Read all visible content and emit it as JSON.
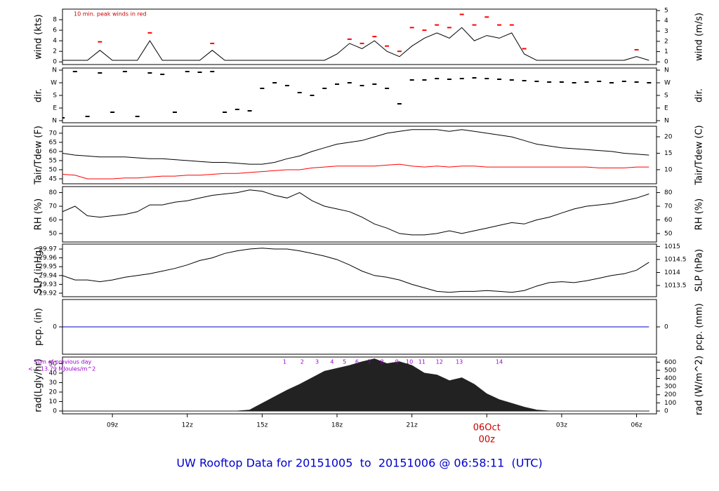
{
  "title": "UW Rooftop Data for 20151005  to  20151006 @ 06:58:11  (UTC)",
  "time_axis": {
    "xlim": [
      7,
      30.8
    ],
    "xticks": [
      {
        "value": 9,
        "label": "09z"
      },
      {
        "value": 12,
        "label": "12z"
      },
      {
        "value": 15,
        "label": "15z"
      },
      {
        "value": 18,
        "label": "18z"
      },
      {
        "value": 21,
        "label": "21z"
      },
      {
        "value": 24,
        "label": "00z"
      },
      {
        "value": 27,
        "label": "03z"
      },
      {
        "value": 30,
        "label": "06z"
      }
    ],
    "date_label": {
      "value": 24,
      "label": "06Oct"
    }
  },
  "chart_data": [
    {
      "type": "line",
      "ylabel": "wind (kts)",
      "y2label": "wind (m/s)",
      "annotation": "10 min. peak winds in red",
      "ylim": [
        -0.5,
        10
      ],
      "yticks": [
        0,
        2,
        4,
        6,
        8
      ],
      "y2lim": [
        -0.26,
        5.14
      ],
      "y2ticks": [
        0,
        1,
        2,
        3,
        4,
        5
      ],
      "x": [
        7,
        7.5,
        8,
        8.5,
        9,
        9.5,
        10,
        10.5,
        11,
        11.5,
        12,
        12.5,
        13,
        13.5,
        14,
        14.5,
        15,
        15.5,
        16,
        16.5,
        17,
        17.5,
        18,
        18.5,
        19,
        19.5,
        20,
        20.5,
        21,
        21.5,
        22,
        22.5,
        23,
        23.5,
        24,
        24.5,
        25,
        25.5,
        26,
        26.5,
        27,
        27.5,
        28,
        28.5,
        29,
        29.5,
        30,
        30.5
      ],
      "series": [
        {
          "style": "line",
          "color": "#000000",
          "values": [
            0.3,
            0.3,
            0.3,
            2.2,
            0.3,
            0.3,
            0.3,
            4,
            0.3,
            0.3,
            0.3,
            0.3,
            2.2,
            0.3,
            0.3,
            0.3,
            0.3,
            0.3,
            0.3,
            0.3,
            0.3,
            0.3,
            1.5,
            3.5,
            2.5,
            4,
            2,
            1,
            3,
            4.5,
            5.5,
            4.5,
            6.5,
            4,
            5,
            4.5,
            5.5,
            1.5,
            0.3,
            0.3,
            0.3,
            0.3,
            0.3,
            0.3,
            0.3,
            0.3,
            1,
            0.3
          ]
        },
        {
          "style": "dash",
          "color": "#ff0000",
          "values": [
            null,
            null,
            null,
            3.8,
            null,
            null,
            null,
            5.5,
            null,
            null,
            null,
            null,
            3.5,
            null,
            null,
            null,
            null,
            null,
            null,
            null,
            null,
            null,
            null,
            4.3,
            3.5,
            4.8,
            3,
            2,
            6.5,
            6,
            7,
            6.5,
            9,
            7,
            8.5,
            7,
            7,
            2.5,
            null,
            null,
            null,
            null,
            null,
            null,
            null,
            null,
            2.3,
            null
          ]
        }
      ]
    },
    {
      "type": "scatter",
      "ylabel": "dir.",
      "y2label": "dir.",
      "ylim": [
        -15,
        375
      ],
      "yticks": [
        {
          "value": 0,
          "label": "N"
        },
        {
          "value": 90,
          "label": "E"
        },
        {
          "value": 180,
          "label": "S"
        },
        {
          "value": 270,
          "label": "W"
        },
        {
          "value": 360,
          "label": "N"
        }
      ],
      "y2lim": [
        -15,
        375
      ],
      "y2ticks": [
        {
          "value": 0,
          "label": "N"
        },
        {
          "value": 90,
          "label": "E"
        },
        {
          "value": 180,
          "label": "S"
        },
        {
          "value": 270,
          "label": "W"
        },
        {
          "value": 360,
          "label": "N"
        }
      ],
      "x": [
        7,
        7.5,
        8,
        8.5,
        9,
        9.5,
        10,
        10.5,
        11,
        11.5,
        12,
        12.5,
        13,
        13.5,
        14,
        14.5,
        15,
        15.5,
        16,
        16.5,
        17,
        17.5,
        18,
        18.5,
        19,
        19.5,
        20,
        20.5,
        21,
        21.5,
        22,
        22.5,
        23,
        23.5,
        24,
        24.5,
        25,
        25.5,
        26,
        26.5,
        27,
        27.5,
        28,
        28.5,
        29,
        29.5,
        30,
        30.5
      ],
      "series": [
        {
          "style": "dash",
          "color": "#000000",
          "values": [
            20,
            350,
            30,
            340,
            60,
            350,
            30,
            340,
            330,
            60,
            350,
            345,
            350,
            60,
            80,
            70,
            230,
            270,
            250,
            200,
            180,
            230,
            260,
            270,
            250,
            260,
            230,
            120,
            290,
            290,
            300,
            295,
            300,
            305,
            300,
            295,
            290,
            285,
            280,
            275,
            275,
            270,
            275,
            280,
            270,
            280,
            275,
            270
          ]
        }
      ]
    },
    {
      "type": "line",
      "ylabel": "Tair/Tdew (F)",
      "y2label": "Tair/Tdew (C)",
      "ylim": [
        42.3,
        73.8
      ],
      "yticks": [
        45,
        50,
        55,
        60,
        65,
        70
      ],
      "y2lim": [
        5.72,
        23.2
      ],
      "y2ticks": [
        10,
        15,
        20
      ],
      "x": [
        7,
        7.5,
        8,
        8.5,
        9,
        9.5,
        10,
        10.5,
        11,
        11.5,
        12,
        12.5,
        13,
        13.5,
        14,
        14.5,
        15,
        15.5,
        16,
        16.5,
        17,
        17.5,
        18,
        18.5,
        19,
        19.5,
        20,
        20.5,
        21,
        21.5,
        22,
        22.5,
        23,
        23.5,
        24,
        24.5,
        25,
        25.5,
        26,
        26.5,
        27,
        27.5,
        28,
        28.5,
        29,
        29.5,
        30,
        30.5
      ],
      "series": [
        {
          "style": "line",
          "color": "#000000",
          "values": [
            59,
            58,
            57.5,
            57,
            57,
            57,
            56.5,
            56,
            56,
            55.5,
            55,
            54.5,
            54,
            54,
            53.5,
            53,
            53,
            54,
            56,
            57.5,
            60,
            62,
            64,
            65,
            66,
            68,
            70,
            71,
            72,
            72,
            72,
            71,
            72,
            71,
            70,
            69,
            68,
            66,
            64,
            63,
            62,
            61.5,
            61,
            60.5,
            60,
            59,
            58.5,
            58
          ]
        },
        {
          "style": "line",
          "color": "#ff0000",
          "values": [
            47.5,
            47,
            45,
            45,
            45,
            45.5,
            45.5,
            46,
            46.5,
            46.5,
            47,
            47,
            47.5,
            48,
            48,
            48.5,
            49,
            49.5,
            50,
            50,
            51,
            51.5,
            52,
            52,
            52,
            52,
            52.5,
            53,
            52,
            51.5,
            52,
            51.5,
            52,
            52,
            51.5,
            51.5,
            51.5,
            51.5,
            51.5,
            51.5,
            51.5,
            51.5,
            51.5,
            51,
            51,
            51,
            51.5,
            51.5
          ]
        }
      ]
    },
    {
      "type": "line",
      "ylabel": "RH (%)",
      "y2label": "RH (%)",
      "ylim": [
        43.8,
        84.4
      ],
      "yticks": [
        50,
        60,
        70,
        80
      ],
      "y2lim": [
        43.8,
        84.4
      ],
      "y2ticks": [
        50,
        60,
        70,
        80
      ],
      "x": [
        7,
        7.5,
        8,
        8.5,
        9,
        9.5,
        10,
        10.5,
        11,
        11.5,
        12,
        12.5,
        13,
        13.5,
        14,
        14.5,
        15,
        15.5,
        16,
        16.5,
        17,
        17.5,
        18,
        18.5,
        19,
        19.5,
        20,
        20.5,
        21,
        21.5,
        22,
        22.5,
        23,
        23.5,
        24,
        24.5,
        25,
        25.5,
        26,
        26.5,
        27,
        27.5,
        28,
        28.5,
        29,
        29.5,
        30,
        30.5
      ],
      "series": [
        {
          "style": "line",
          "color": "#000000",
          "values": [
            66,
            70,
            63,
            62,
            63,
            64,
            66,
            71,
            71,
            73,
            74,
            76,
            78,
            79,
            80,
            82,
            81,
            78,
            76,
            80,
            74,
            70,
            68,
            66,
            62,
            57,
            54,
            50,
            49,
            49,
            50,
            52,
            50,
            52,
            54,
            56,
            58,
            57,
            60,
            62,
            65,
            68,
            70,
            71,
            72,
            74,
            76,
            79
          ]
        }
      ]
    },
    {
      "type": "line",
      "ylabel": "SLP (inHg)",
      "y2label": "SLP (hPa)",
      "ylim": [
        29.916,
        29.9756
      ],
      "yticks": [
        29.92,
        29.93,
        29.94,
        29.95,
        29.96,
        29.97
      ],
      "y2lim": [
        1013.07,
        1015.09
      ],
      "y2ticks": [
        1013.5,
        1014,
        1014.5,
        1015
      ],
      "x": [
        7,
        7.5,
        8,
        8.5,
        9,
        9.5,
        10,
        10.5,
        11,
        11.5,
        12,
        12.5,
        13,
        13.5,
        14,
        14.5,
        15,
        15.5,
        16,
        16.5,
        17,
        17.5,
        18,
        18.5,
        19,
        19.5,
        20,
        20.5,
        21,
        21.5,
        22,
        22.5,
        23,
        23.5,
        24,
        24.5,
        25,
        25.5,
        26,
        26.5,
        27,
        27.5,
        28,
        28.5,
        29,
        29.5,
        30,
        30.5
      ],
      "series": [
        {
          "style": "line",
          "color": "#000000",
          "values": [
            29.94,
            29.935,
            29.935,
            29.933,
            29.935,
            29.938,
            29.94,
            29.942,
            29.945,
            29.948,
            29.952,
            29.957,
            29.96,
            29.965,
            29.968,
            29.97,
            29.971,
            29.97,
            29.97,
            29.968,
            29.965,
            29.962,
            29.958,
            29.952,
            29.945,
            29.94,
            29.938,
            29.935,
            29.93,
            29.926,
            29.922,
            29.921,
            29.922,
            29.922,
            29.923,
            29.922,
            29.921,
            29.923,
            29.928,
            29.932,
            29.933,
            29.932,
            29.934,
            29.937,
            29.94,
            29.942,
            29.946,
            29.955
          ]
        }
      ]
    },
    {
      "type": "line",
      "ylabel": "pcp. (in)",
      "y2label": "pcp. (mm)",
      "ylim": [
        -1,
        1
      ],
      "yticks": [
        0
      ],
      "y2lim": [
        -25.4,
        25.4
      ],
      "y2ticks": [
        0
      ],
      "x": [
        7,
        7.5,
        8,
        8.5,
        9,
        9.5,
        10,
        10.5,
        11,
        11.5,
        12,
        12.5,
        13,
        13.5,
        14,
        14.5,
        15,
        15.5,
        16,
        16.5,
        17,
        17.5,
        18,
        18.5,
        19,
        19.5,
        20,
        20.5,
        21,
        21.5,
        22,
        22.5,
        23,
        23.5,
        24,
        24.5,
        25,
        25.5,
        26,
        26.5,
        27,
        27.5,
        28,
        28.5,
        29,
        29.5,
        30,
        30.5
      ],
      "series": [
        {
          "style": "line",
          "color": "#0000cc",
          "values": [
            0,
            0,
            0,
            0,
            0,
            0,
            0,
            0,
            0,
            0,
            0,
            0,
            0,
            0,
            0,
            0,
            0,
            0,
            0,
            0,
            0,
            0,
            0,
            0,
            0,
            0,
            0,
            0,
            0,
            0,
            0,
            0,
            0,
            0,
            0,
            0,
            0,
            0,
            0,
            0,
            0,
            0,
            0,
            0,
            0,
            0,
            0,
            0
          ]
        }
      ]
    },
    {
      "type": "area",
      "ylabel": "rad(Lgly/hr)",
      "y2label": "rad (W/m^2)",
      "annotation": "Sum of previous day",
      "annotation2": "<--- 13.79 MJoules/m^2",
      "hour_marks": {
        "labels": [
          1,
          2,
          3,
          4,
          5,
          6,
          7,
          8,
          9,
          10,
          11,
          12,
          13,
          14
        ],
        "x": [
          15.9,
          16.6,
          17.2,
          17.8,
          18.3,
          18.8,
          19.3,
          19.8,
          20.4,
          20.9,
          21.4,
          22.1,
          22.9,
          24.5
        ]
      },
      "ylim": [
        -3,
        57
      ],
      "yticks": [
        0,
        10,
        20,
        30,
        40,
        50
      ],
      "y2lim": [
        -34.9,
        663
      ],
      "y2ticks": [
        0,
        100,
        200,
        300,
        400,
        500,
        600
      ],
      "x": [
        7,
        7.5,
        8,
        8.5,
        9,
        9.5,
        10,
        10.5,
        11,
        11.5,
        12,
        12.5,
        13,
        13.5,
        14,
        14.5,
        15,
        15.5,
        16,
        16.5,
        17,
        17.5,
        18,
        18.5,
        19,
        19.5,
        20,
        20.5,
        21,
        21.5,
        22,
        22.5,
        23,
        23.5,
        24,
        24.5,
        25,
        25.5,
        26,
        26.5,
        27,
        27.5,
        28,
        28.5,
        29,
        29.5,
        30,
        30.5
      ],
      "series": [
        {
          "style": "area",
          "color": "#222222",
          "values": [
            0,
            0,
            0,
            0,
            0,
            0,
            0,
            0,
            0,
            0,
            0,
            0,
            0,
            0,
            0,
            1,
            8,
            15,
            22,
            28,
            35,
            42,
            45,
            48,
            52,
            55,
            50,
            52,
            48,
            40,
            38,
            32,
            35,
            28,
            18,
            12,
            8,
            4,
            1,
            0,
            0,
            0,
            0,
            0,
            0,
            0,
            0,
            0
          ]
        }
      ]
    }
  ]
}
